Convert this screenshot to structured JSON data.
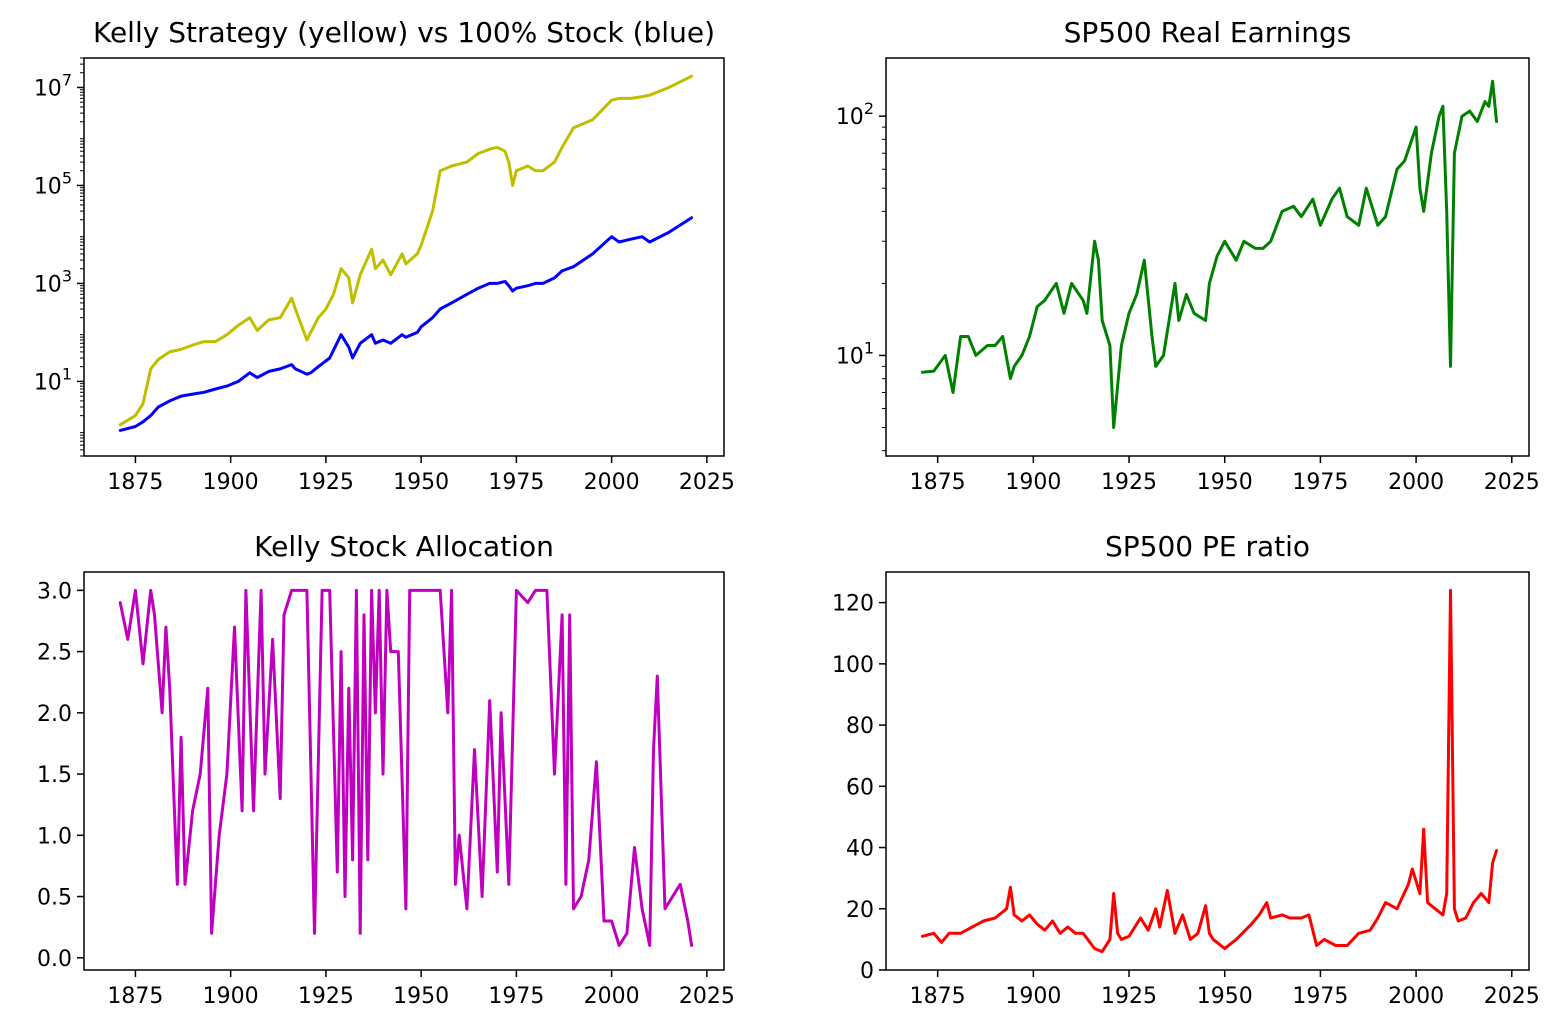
{
  "chart_data": [
    {
      "id": "kelly-vs-stock",
      "type": "line",
      "title": "Kelly Strategy (yellow) vs 100% Stock (blue)",
      "yscale": "log",
      "xlim": [
        1861.5,
        2029.5
      ],
      "ylim": [
        0.3,
        40000000
      ],
      "xticks": [
        1875,
        1900,
        1925,
        1950,
        1975,
        2000,
        2025
      ],
      "yticks": [
        10,
        1000,
        100000,
        10000000
      ],
      "ytick_labels": [
        {
          "base": "10",
          "exp": "1"
        },
        {
          "base": "10",
          "exp": "3"
        },
        {
          "base": "10",
          "exp": "5"
        },
        {
          "base": "10",
          "exp": "7"
        }
      ],
      "series": [
        {
          "color": "#bfbf00",
          "x": [
            1871,
            1875,
            1877,
            1879,
            1881,
            1884,
            1887,
            1890,
            1893,
            1896,
            1899,
            1902,
            1905,
            1907,
            1910,
            1913,
            1916,
            1917,
            1920,
            1921,
            1923,
            1925,
            1927,
            1929,
            1931,
            1932,
            1934,
            1937,
            1938,
            1940,
            1942,
            1945,
            1946,
            1949,
            1950,
            1953,
            1955,
            1958,
            1962,
            1965,
            1968,
            1970,
            1972,
            1973,
            1974,
            1975,
            1978,
            1980,
            1982,
            1985,
            1987,
            1990,
            1995,
            2000,
            2002,
            2005,
            2008,
            2010,
            2015,
            2021
          ],
          "values": [
            1.3,
            2,
            3.5,
            18,
            28,
            40,
            45,
            55,
            65,
            65,
            90,
            140,
            200,
            110,
            180,
            200,
            500,
            300,
            70,
            100,
            200,
            300,
            600,
            2000,
            1300,
            400,
            1500,
            5000,
            2000,
            3000,
            1500,
            4000,
            2500,
            4000,
            6000,
            30000,
            200000,
            250000,
            300000,
            450000,
            550000,
            600000,
            500000,
            300000,
            100000,
            200000,
            250000,
            200000,
            200000,
            300000,
            600000,
            1500000,
            2200000,
            5500000,
            6000000,
            6000000,
            6500000,
            7000000,
            10000000,
            17000000
          ]
        },
        {
          "color": "#0000ff",
          "x": [
            1871,
            1875,
            1877,
            1879,
            1881,
            1884,
            1887,
            1890,
            1893,
            1896,
            1899,
            1902,
            1905,
            1907,
            1910,
            1913,
            1916,
            1917,
            1920,
            1921,
            1923,
            1926,
            1929,
            1931,
            1932,
            1934,
            1937,
            1938,
            1940,
            1942,
            1945,
            1946,
            1949,
            1950,
            1953,
            1955,
            1958,
            1962,
            1965,
            1968,
            1970,
            1972,
            1973,
            1974,
            1975,
            1978,
            1980,
            1982,
            1985,
            1987,
            1990,
            1995,
            2000,
            2002,
            2005,
            2008,
            2010,
            2015,
            2021
          ],
          "values": [
            1,
            1.2,
            1.5,
            2,
            3,
            4,
            5,
            5.5,
            6,
            7,
            8,
            10,
            15,
            12,
            16,
            18,
            22,
            18,
            14,
            15,
            20,
            30,
            90,
            50,
            30,
            60,
            90,
            60,
            70,
            60,
            90,
            80,
            100,
            130,
            200,
            300,
            400,
            600,
            800,
            1000,
            1000,
            1100,
            900,
            700,
            800,
            900,
            1000,
            1000,
            1300,
            1800,
            2200,
            4000,
            9000,
            7000,
            8000,
            9000,
            7000,
            11000,
            22000
          ]
        }
      ]
    },
    {
      "id": "sp500-real-earnings",
      "type": "line",
      "title": "SP500 Real Earnings",
      "yscale": "log",
      "xlim": [
        1861.5,
        2029.5
      ],
      "ylim": [
        3.8,
        175
      ],
      "xticks": [
        1875,
        1900,
        1925,
        1950,
        1975,
        2000,
        2025
      ],
      "yticks": [
        10,
        100
      ],
      "ytick_labels": [
        {
          "base": "10",
          "exp": "1"
        },
        {
          "base": "10",
          "exp": "2"
        }
      ],
      "series": [
        {
          "color": "#008000",
          "x": [
            1871,
            1874,
            1877,
            1879,
            1881,
            1883,
            1885,
            1888,
            1890,
            1892,
            1894,
            1895,
            1897,
            1899,
            1901,
            1903,
            1904,
            1906,
            1908,
            1910,
            1913,
            1914,
            1916,
            1917,
            1918,
            1920,
            1921,
            1923,
            1925,
            1927,
            1929,
            1931,
            1932,
            1934,
            1937,
            1938,
            1940,
            1942,
            1945,
            1946,
            1948,
            1950,
            1953,
            1955,
            1958,
            1960,
            1962,
            1965,
            1968,
            1970,
            1973,
            1975,
            1978,
            1980,
            1982,
            1985,
            1987,
            1990,
            1992,
            1995,
            1997,
            2000,
            2001,
            2002,
            2004,
            2006,
            2007,
            2008,
            2009,
            2010,
            2012,
            2014,
            2016,
            2018,
            2019,
            2020,
            2021
          ],
          "values": [
            8.5,
            8.6,
            10,
            7,
            12,
            12,
            10,
            11,
            11,
            12,
            8,
            9,
            10,
            12,
            16,
            17,
            18,
            20,
            15,
            20,
            17,
            15,
            30,
            25,
            14,
            11,
            5,
            11,
            15,
            18,
            25,
            12,
            9,
            10,
            20,
            14,
            18,
            15,
            14,
            20,
            26,
            30,
            25,
            30,
            28,
            28,
            30,
            40,
            42,
            38,
            45,
            35,
            45,
            50,
            38,
            35,
            50,
            35,
            38,
            60,
            65,
            90,
            50,
            40,
            70,
            100,
            110,
            40,
            9,
            70,
            100,
            105,
            95,
            115,
            110,
            140,
            95
          ]
        }
      ]
    },
    {
      "id": "kelly-stock-allocation",
      "type": "line",
      "title": "Kelly Stock Allocation",
      "yscale": "linear",
      "xlim": [
        1861.5,
        2029.5
      ],
      "ylim": [
        -0.1,
        3.15
      ],
      "xticks": [
        1875,
        1900,
        1925,
        1950,
        1975,
        2000,
        2025
      ],
      "yticks": [
        0.0,
        0.5,
        1.0,
        1.5,
        2.0,
        2.5,
        3.0
      ],
      "ytick_labels": [
        "0.0",
        "0.5",
        "1.0",
        "1.5",
        "2.0",
        "2.5",
        "3.0"
      ],
      "series": [
        {
          "color": "#bf00bf",
          "x": [
            1871,
            1873,
            1875,
            1877,
            1879,
            1880,
            1882,
            1883,
            1884,
            1886,
            1887,
            1888,
            1890,
            1892,
            1894,
            1895,
            1897,
            1899,
            1901,
            1903,
            1904,
            1906,
            1908,
            1909,
            1911,
            1913,
            1914,
            1916,
            1918,
            1920,
            1922,
            1924,
            1926,
            1928,
            1929,
            1930,
            1931,
            1932,
            1933,
            1934,
            1935,
            1936,
            1937,
            1938,
            1939,
            1940,
            1941,
            1942,
            1944,
            1946,
            1947,
            1949,
            1951,
            1953,
            1955,
            1957,
            1958,
            1959,
            1960,
            1961,
            1962,
            1964,
            1966,
            1968,
            1970,
            1971,
            1973,
            1975,
            1978,
            1980,
            1983,
            1985,
            1987,
            1988,
            1989,
            1990,
            1992,
            1994,
            1996,
            1998,
            2000,
            2002,
            2004,
            2006,
            2008,
            2010,
            2011,
            2012,
            2014,
            2016,
            2018,
            2020,
            2021
          ],
          "values": [
            2.9,
            2.6,
            3.0,
            2.4,
            3.0,
            2.8,
            2.0,
            2.7,
            2.2,
            0.6,
            1.8,
            0.6,
            1.2,
            1.5,
            2.2,
            0.2,
            1.0,
            1.5,
            2.7,
            1.2,
            3.0,
            1.2,
            3.0,
            1.5,
            2.6,
            1.3,
            2.8,
            3.0,
            3.0,
            3.0,
            0.2,
            3.0,
            3.0,
            0.7,
            2.5,
            0.5,
            2.2,
            0.8,
            3.0,
            0.2,
            2.8,
            0.8,
            3.0,
            2.0,
            3.0,
            1.5,
            3.0,
            2.5,
            2.5,
            0.4,
            3.0,
            3.0,
            3.0,
            3.0,
            3.0,
            2.0,
            3.0,
            0.6,
            1.0,
            0.7,
            0.4,
            1.7,
            0.5,
            2.1,
            0.7,
            2.0,
            0.6,
            3.0,
            2.9,
            3.0,
            3.0,
            1.5,
            2.8,
            0.6,
            2.8,
            0.4,
            0.5,
            0.8,
            1.6,
            0.3,
            0.3,
            0.1,
            0.2,
            0.9,
            0.4,
            0.1,
            1.7,
            2.3,
            0.4,
            0.5,
            0.6,
            0.3,
            0.1
          ]
        }
      ]
    },
    {
      "id": "sp500-pe-ratio",
      "type": "line",
      "title": "SP500 PE ratio",
      "yscale": "linear",
      "xlim": [
        1861.5,
        2029.5
      ],
      "ylim": [
        0,
        130
      ],
      "xticks": [
        1875,
        1900,
        1925,
        1950,
        1975,
        2000,
        2025
      ],
      "yticks": [
        0,
        20,
        40,
        60,
        80,
        100,
        120
      ],
      "ytick_labels": [
        "0",
        "20",
        "40",
        "60",
        "80",
        "100",
        "120"
      ],
      "series": [
        {
          "color": "#ff0000",
          "x": [
            1871,
            1874,
            1876,
            1878,
            1881,
            1884,
            1887,
            1890,
            1893,
            1894,
            1895,
            1897,
            1899,
            1901,
            1903,
            1905,
            1907,
            1909,
            1911,
            1913,
            1916,
            1918,
            1920,
            1921,
            1922,
            1923,
            1925,
            1928,
            1930,
            1932,
            1933,
            1935,
            1937,
            1939,
            1941,
            1943,
            1945,
            1946,
            1947,
            1950,
            1953,
            1957,
            1959,
            1961,
            1962,
            1965,
            1967,
            1970,
            1972,
            1974,
            1976,
            1979,
            1982,
            1985,
            1988,
            1990,
            1992,
            1995,
            1998,
            1999,
            2001,
            2002,
            2003,
            2005,
            2007,
            2008,
            2009,
            2010,
            2011,
            2013,
            2015,
            2017,
            2019,
            2020,
            2021
          ],
          "values": [
            11,
            12,
            9,
            12,
            12,
            14,
            16,
            17,
            20,
            27,
            18,
            16,
            18,
            15,
            13,
            16,
            12,
            14,
            12,
            12,
            7,
            6,
            10,
            25,
            12,
            10,
            11,
            17,
            13,
            20,
            14,
            26,
            12,
            18,
            10,
            12,
            21,
            12,
            10,
            7,
            10,
            15,
            18,
            22,
            17,
            18,
            17,
            17,
            18,
            8,
            10,
            8,
            8,
            12,
            13,
            17,
            22,
            20,
            28,
            33,
            25,
            46,
            22,
            20,
            18,
            25,
            124,
            20,
            16,
            17,
            22,
            25,
            22,
            35,
            39
          ]
        }
      ]
    }
  ]
}
